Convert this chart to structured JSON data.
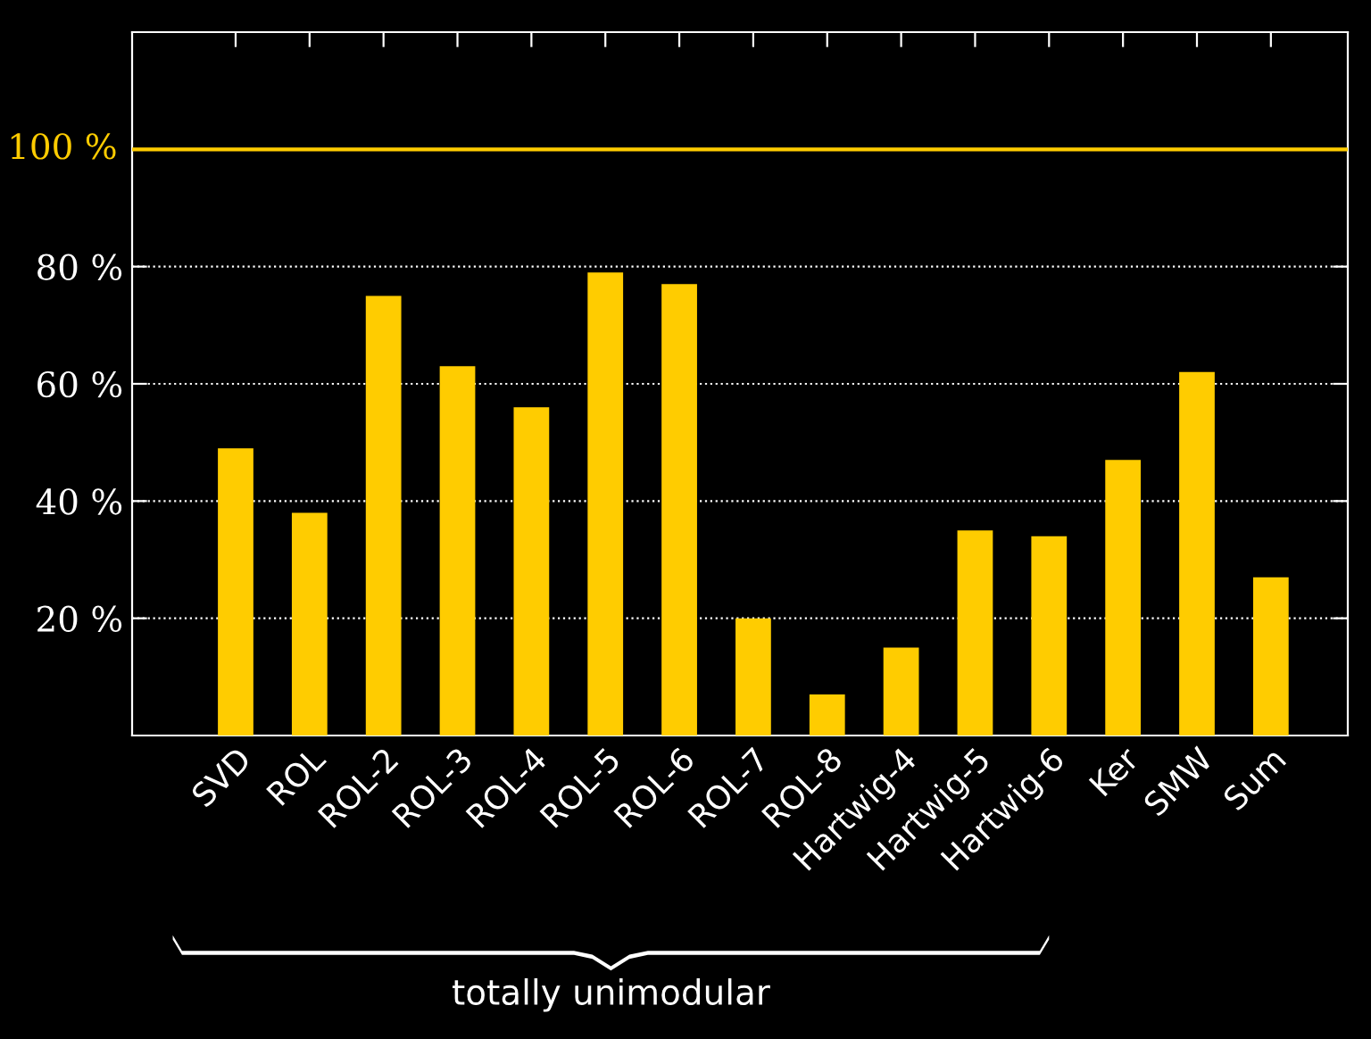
{
  "chart_data": {
    "type": "bar",
    "categories": [
      "SVD",
      "ROL",
      "ROL-2",
      "ROL-3",
      "ROL-4",
      "ROL-5",
      "ROL-6",
      "ROL-7",
      "ROL-8",
      "Hartwig-4",
      "Hartwig-5",
      "Hartwig-6",
      "Ker",
      "SMW",
      "Sum"
    ],
    "values": [
      49,
      38,
      75,
      63,
      56,
      79,
      77,
      20,
      7,
      15,
      35,
      34,
      47,
      62,
      27
    ],
    "color": "#ffcc00",
    "ylim": [
      0,
      120
    ],
    "yticks": [
      {
        "value": 20,
        "label": "20 %"
      },
      {
        "value": 40,
        "label": "40 %"
      },
      {
        "value": 60,
        "label": "60 %"
      },
      {
        "value": 80,
        "label": "80 %"
      }
    ],
    "grid": "y",
    "ref_lines": [
      {
        "axis": "y",
        "value": 100,
        "label": "100 %",
        "color": "#ffcc00",
        "line_style": "solid"
      }
    ],
    "annotations": [
      "totally unimodular"
    ]
  }
}
